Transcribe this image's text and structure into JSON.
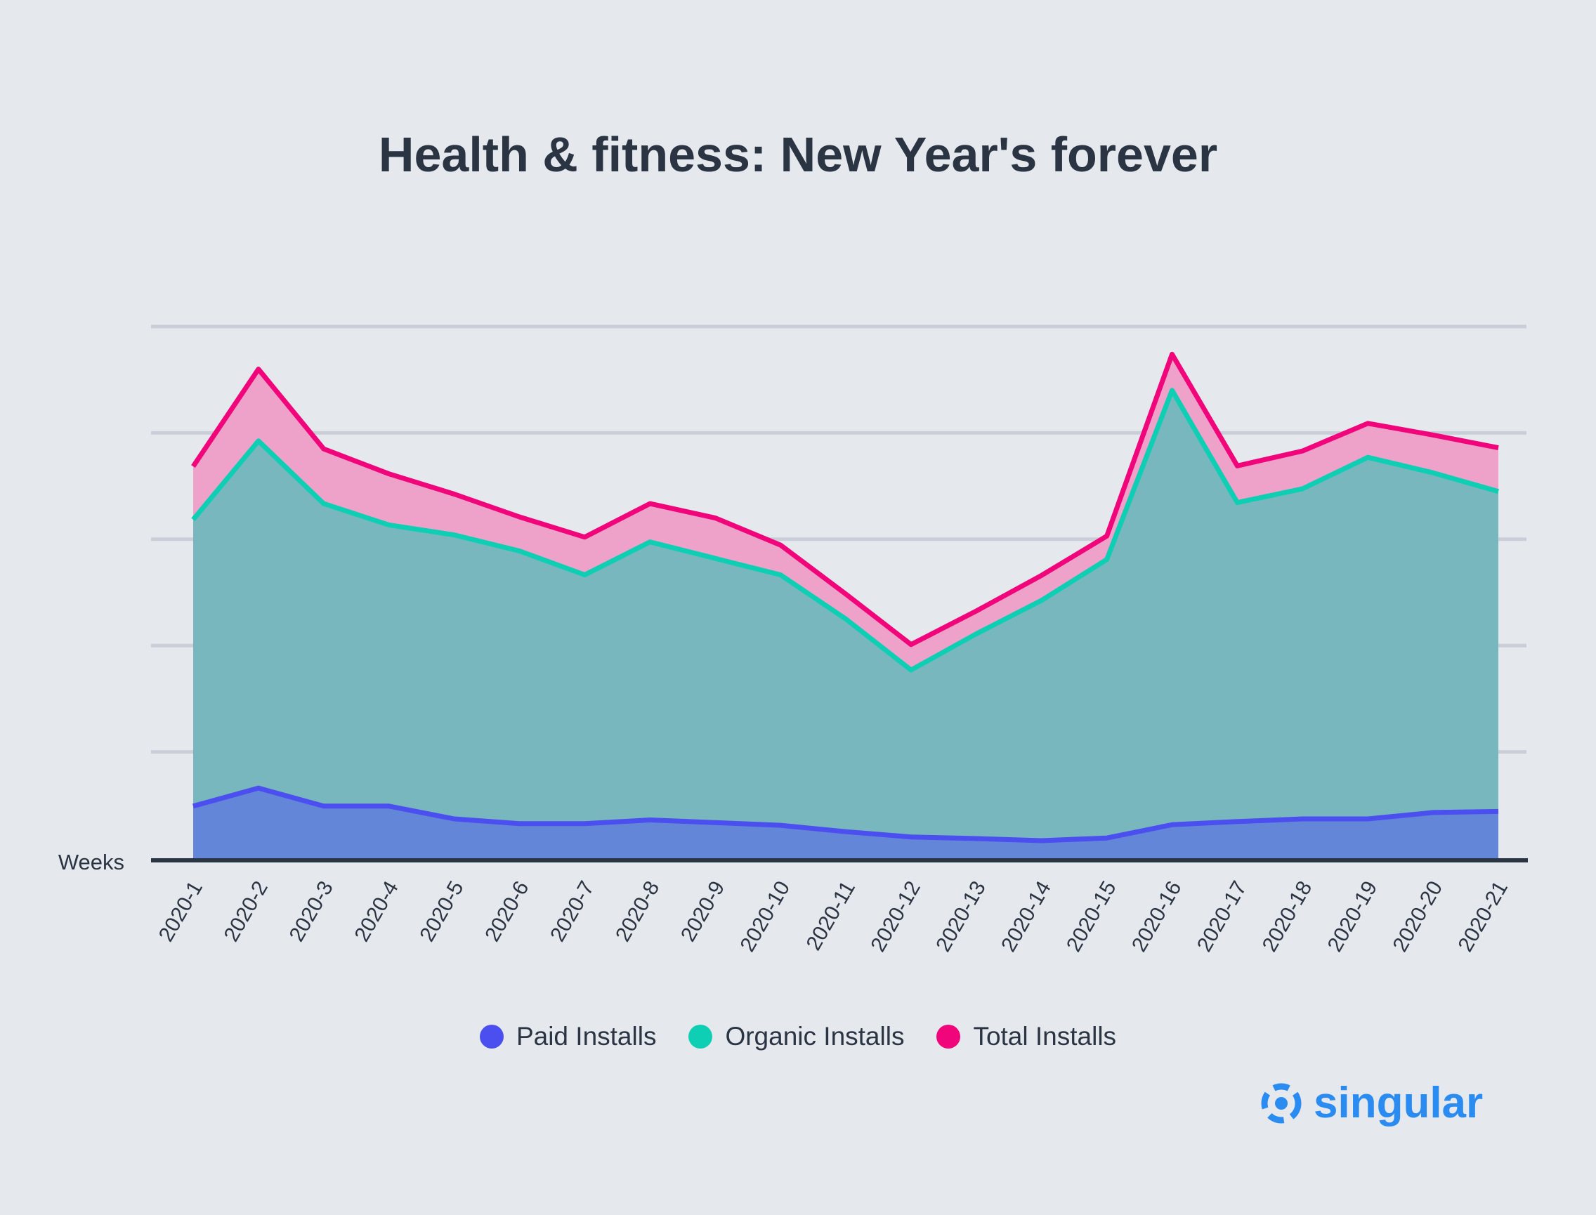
{
  "chart_data": {
    "type": "area",
    "title": "Health & fitness: New Year's forever",
    "xlabel": "Weeks",
    "ylabel": "",
    "categories": [
      "2020-1",
      "2020-2",
      "2020-3",
      "2020-4",
      "2020-5",
      "2020-6",
      "2020-7",
      "2020-8",
      "2020-9",
      "2020-10",
      "2020-11",
      "2020-12",
      "2020-13",
      "2020-14",
      "2020-15",
      "2020-16",
      "2020-17",
      "2020-18",
      "2020-19",
      "2020-20",
      "2020-21"
    ],
    "ylim": [
      0,
      100
    ],
    "grid": true,
    "legend_position": "bottom-center",
    "series": [
      {
        "name": "Paid Installs",
        "color": "#4b4ff0",
        "values": [
          9.8,
          13.2,
          9.8,
          9.8,
          7.4,
          6.5,
          6.5,
          7.2,
          6.7,
          6.2,
          5.0,
          4.0,
          3.7,
          3.3,
          3.8,
          6.3,
          6.9,
          7.4,
          7.4,
          8.6,
          8.8
        ]
      },
      {
        "name": "Organic Installs",
        "color": "#0ecfb3",
        "values": [
          63.7,
          78.5,
          66.7,
          62.7,
          60.8,
          57.8,
          53.3,
          59.5,
          56.4,
          53.3,
          45.0,
          35.4,
          42.2,
          48.5,
          56.2,
          88.0,
          66.9,
          69.5,
          75.4,
          72.5,
          69.0
        ]
      },
      {
        "name": "Total Installs",
        "color": "#f0067a",
        "values": [
          73.7,
          92.0,
          77.0,
          72.3,
          68.5,
          64.2,
          60.4,
          66.7,
          64.0,
          58.9,
          49.7,
          40.2,
          46.5,
          53.2,
          60.6,
          94.8,
          73.8,
          76.6,
          81.8,
          79.6,
          77.2
        ]
      }
    ]
  },
  "brand": {
    "name": "singular",
    "color": "#2a8cf0",
    "icon": "singular-logo-icon"
  }
}
